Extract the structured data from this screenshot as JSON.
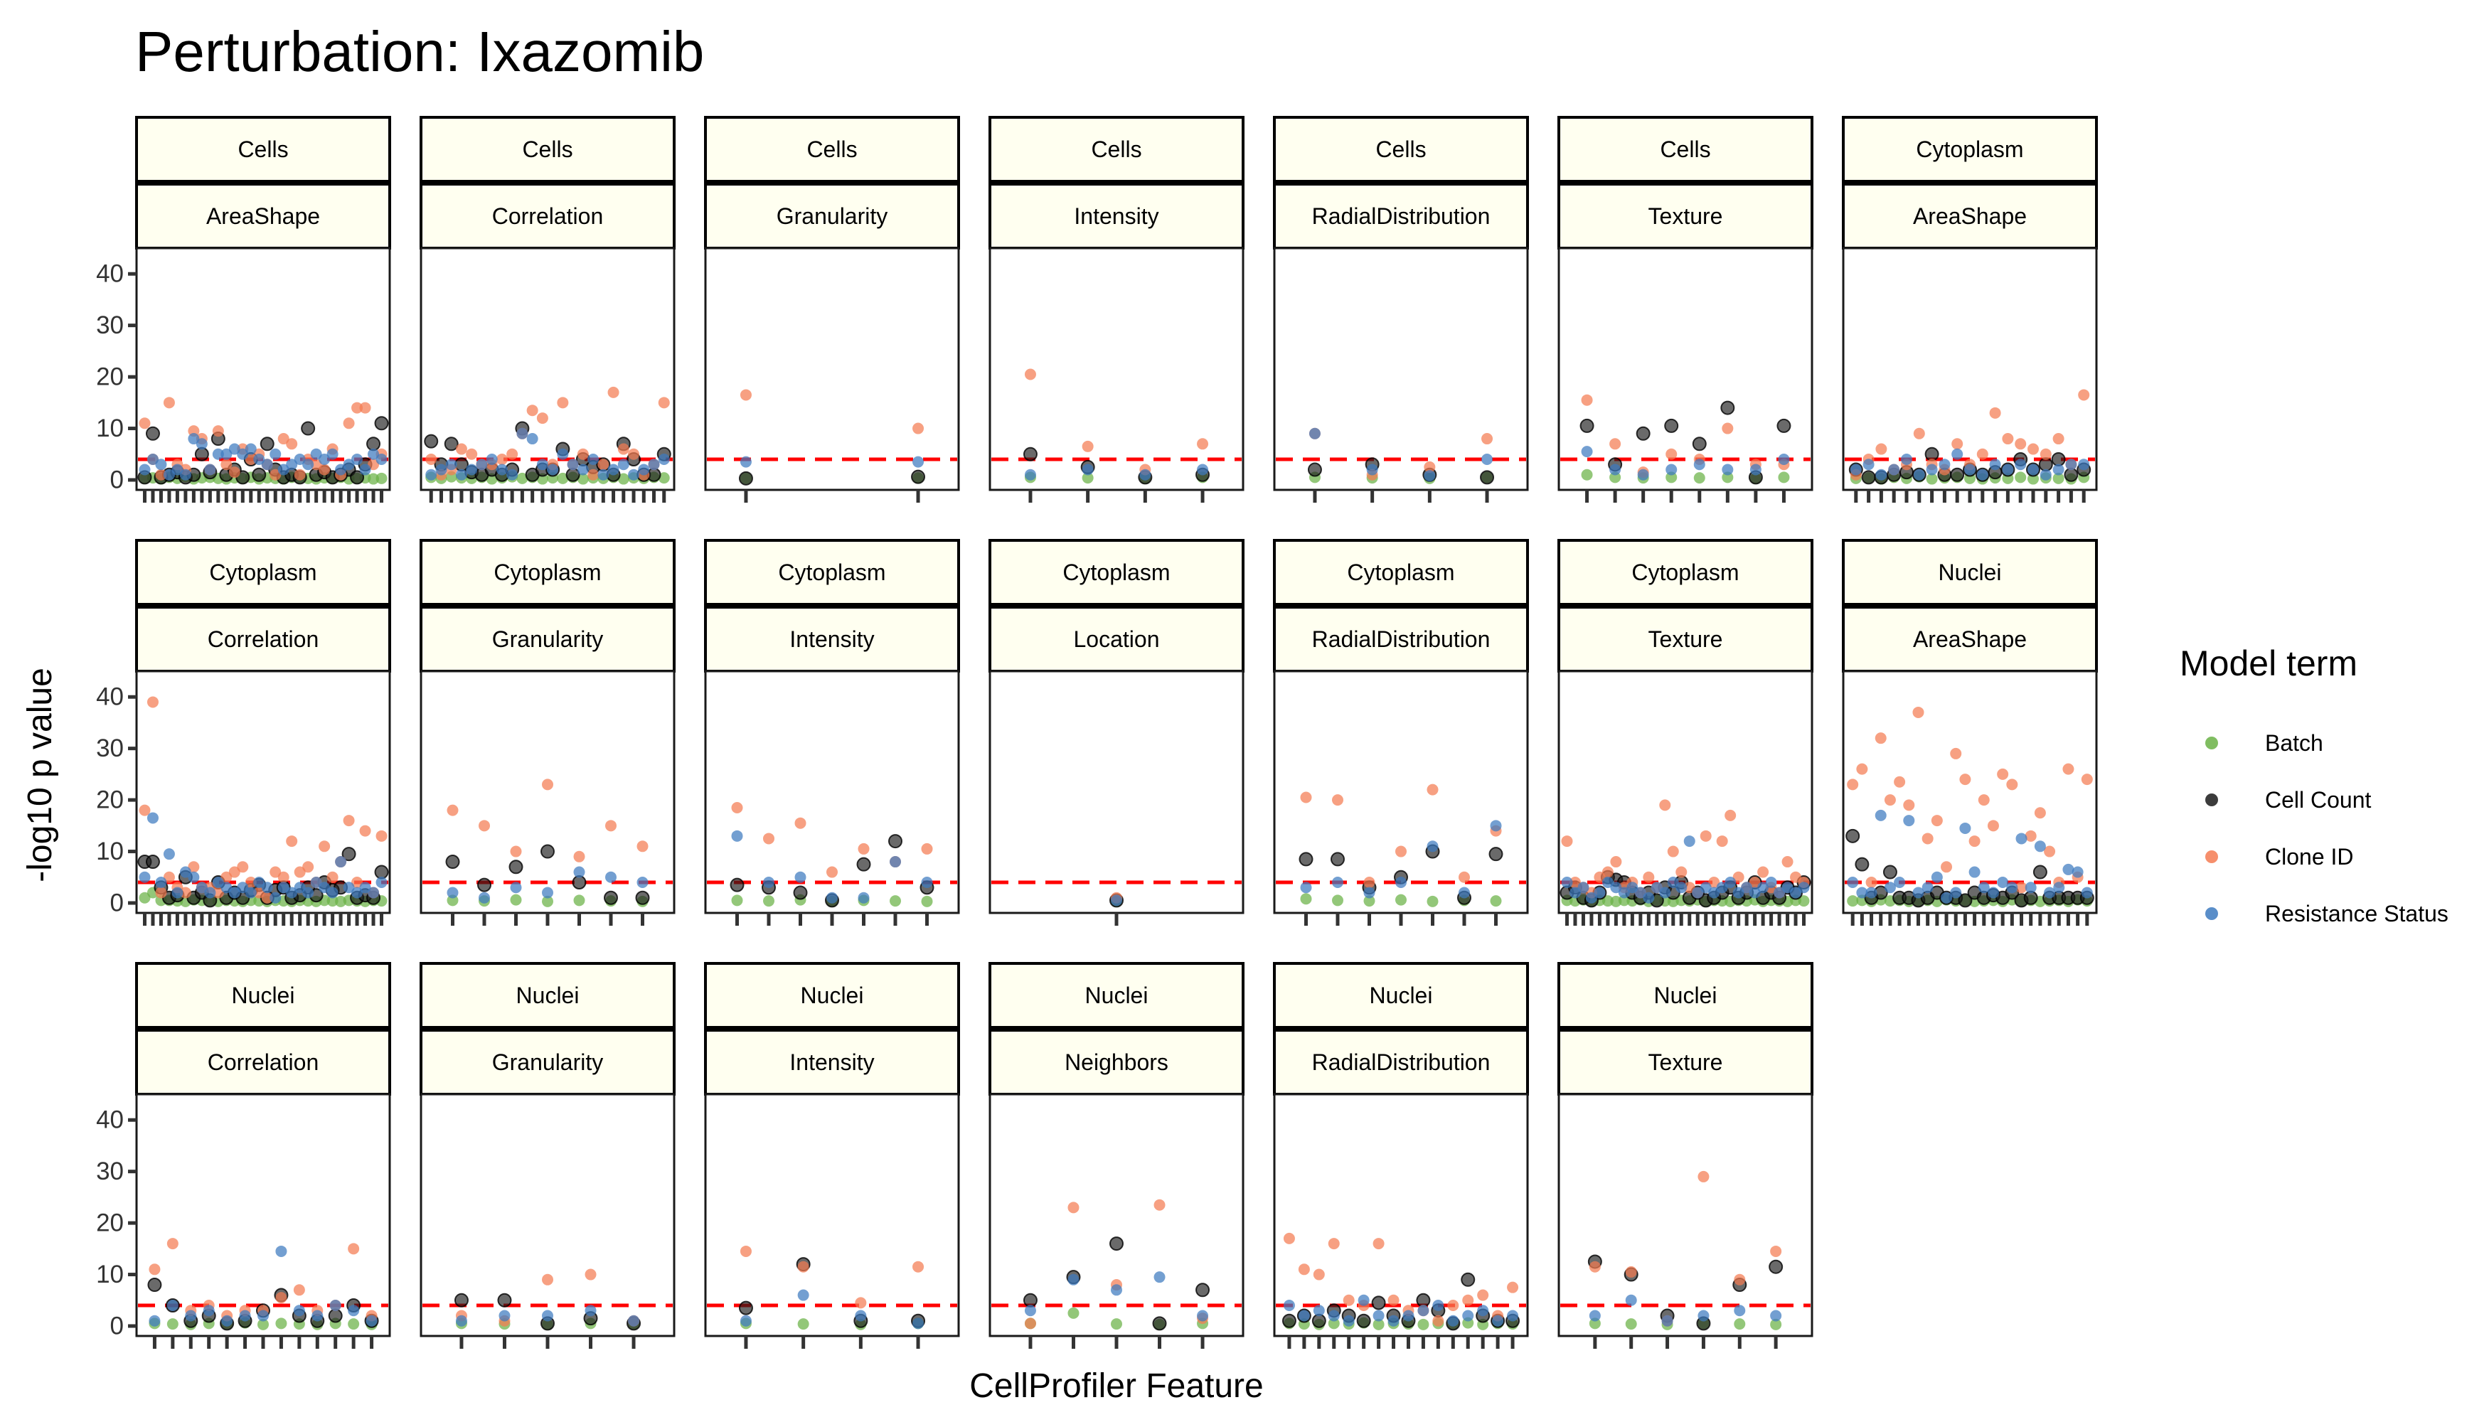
{
  "chart_data": {
    "type": "scatter",
    "title": "Perturbation: Ixazomib",
    "xlabel": "CellProfiler Feature",
    "ylabel": "-log10 p value",
    "ylim": [
      0,
      45
    ],
    "yticks": [
      0,
      10,
      20,
      30,
      40
    ],
    "threshold": 4,
    "grid": false,
    "legend": {
      "title": "Model term",
      "position": "right",
      "entries": [
        {
          "name": "Batch",
          "color": "#6ab245"
        },
        {
          "name": "Cell Count",
          "color": "#1a1a1a"
        },
        {
          "name": "Clone ID",
          "color": "#f47b52"
        },
        {
          "name": "Resistance Status",
          "color": "#3d7abf"
        }
      ]
    },
    "panels": [
      {
        "compartment": "Cells",
        "group": "AreaShape",
        "n": 30,
        "batch": [
          0.3,
          0.4,
          0.2,
          0.5,
          0.3,
          0.6,
          0.2,
          0.4,
          0.5,
          0.3,
          0.2,
          0.4,
          0.3,
          0.5,
          0.2,
          0.4,
          0.3,
          0.2,
          0.5,
          0.4,
          0.3,
          0.2,
          0.4,
          0.3,
          0.5,
          0.2,
          0.3,
          0.4,
          0.2,
          0.3
        ],
        "cell_count": [
          0.5,
          9,
          0.5,
          1,
          1.5,
          0.5,
          1,
          5,
          1.5,
          8,
          1,
          2,
          0.5,
          4,
          1,
          7,
          2,
          0.5,
          1,
          0.5,
          10,
          1,
          1.5,
          0.5,
          1,
          2,
          0.5,
          3,
          7,
          11
        ],
        "clone_id": [
          11,
          4,
          1,
          15,
          3,
          2,
          9.5,
          8,
          2,
          9.5,
          3,
          1.5,
          6,
          4,
          5,
          3,
          1,
          8,
          7,
          1,
          4,
          3,
          2,
          6,
          1,
          11,
          14,
          14,
          3,
          5
        ],
        "resistance": [
          2,
          4,
          3,
          1,
          2,
          1,
          8,
          7,
          2,
          5,
          5,
          6,
          5,
          6,
          4,
          3,
          5,
          2,
          3,
          4,
          3,
          5,
          4,
          5,
          2,
          3,
          4,
          2,
          5,
          4
        ]
      },
      {
        "compartment": "Cells",
        "group": "Correlation",
        "n": 24,
        "batch": [
          0.5,
          0.3,
          0.6,
          0.4,
          0.3,
          0.5,
          0.2,
          0.4,
          0.6,
          0.3,
          0.5,
          0.2,
          0.4,
          0.3,
          0.5,
          0.2,
          0.4,
          0.3,
          0.5,
          0.2,
          0.4,
          0.3,
          0.5,
          0.4
        ],
        "cell_count": [
          7.5,
          3,
          7,
          3,
          1.5,
          1,
          2,
          1,
          2,
          10,
          1,
          2,
          2,
          6,
          1,
          4,
          2.5,
          3,
          1,
          7,
          4,
          1,
          1,
          5
        ],
        "clone_id": [
          4,
          1,
          2,
          6,
          5,
          3,
          3,
          4,
          5,
          9,
          13.5,
          12,
          3,
          15,
          3,
          5,
          1,
          3,
          17,
          6,
          5,
          1,
          3,
          15
        ],
        "resistance": [
          1,
          2,
          3,
          1,
          2,
          3,
          4,
          2,
          1,
          9,
          8,
          3,
          2,
          5,
          3,
          2,
          4,
          1,
          2,
          3,
          1,
          2,
          3,
          4
        ]
      },
      {
        "compartment": "Cells",
        "group": "Granularity",
        "n": 2,
        "batch": [
          0.3,
          0.4
        ],
        "cell_count": [
          0.3,
          0.6
        ],
        "clone_id": [
          16.5,
          10
        ],
        "resistance": [
          3.5,
          3.5
        ]
      },
      {
        "compartment": "Cells",
        "group": "Intensity",
        "n": 4,
        "batch": [
          0.5,
          0.4,
          0.3,
          0.5
        ],
        "cell_count": [
          5,
          2.5,
          0.5,
          1
        ],
        "clone_id": [
          20.5,
          6.5,
          2,
          7
        ],
        "resistance": [
          1,
          2,
          1,
          2
        ]
      },
      {
        "compartment": "Cells",
        "group": "RadialDistribution",
        "n": 4,
        "batch": [
          0.5,
          0.4,
          0.3,
          0.5
        ],
        "cell_count": [
          2,
          3,
          1,
          0.5
        ],
        "clone_id": [
          9,
          1,
          2.5,
          8
        ],
        "resistance": [
          9,
          2,
          0.8,
          4
        ]
      },
      {
        "compartment": "Cells",
        "group": "Texture",
        "n": 8,
        "batch": [
          1,
          0.5,
          0.4,
          0.5,
          0.4,
          0.5,
          0.3,
          0.5
        ],
        "cell_count": [
          10.5,
          3,
          9,
          10.5,
          7,
          14,
          0.5,
          10.5
        ],
        "clone_id": [
          15.5,
          7,
          1.5,
          5,
          4,
          10,
          3,
          3
        ],
        "resistance": [
          5.5,
          2,
          1,
          2,
          3,
          2,
          2,
          4
        ]
      },
      {
        "compartment": "Cytoplasm",
        "group": "AreaShape",
        "n": 19,
        "batch": [
          0.3,
          0.4,
          0.2,
          0.5,
          0.3,
          0.6,
          0.2,
          0.4,
          0.5,
          0.3,
          0.2,
          0.4,
          0.3,
          0.5,
          0.2,
          0.4,
          0.3,
          0.2,
          0.5
        ],
        "cell_count": [
          2,
          0.5,
          0.5,
          1,
          1.5,
          1,
          5,
          1,
          1,
          2,
          1,
          1.5,
          2,
          4,
          2,
          3,
          4,
          1,
          2
        ],
        "clone_id": [
          1,
          4,
          6,
          2,
          3,
          9,
          3,
          2,
          7,
          3,
          5,
          13,
          8,
          7,
          6,
          5,
          8,
          3,
          16.5
        ],
        "resistance": [
          2,
          3,
          1,
          2,
          4,
          1,
          2,
          3,
          5,
          2,
          1,
          3,
          2,
          3,
          2,
          1,
          2,
          3,
          3
        ]
      },
      {
        "compartment": "Cytoplasm",
        "group": "Correlation",
        "n": 30,
        "batch": [
          1,
          2,
          0.5,
          0.5,
          0.4,
          0.3,
          0.6,
          0.5,
          0.4,
          0.3,
          0.5,
          0.4,
          0.3,
          0.5,
          0.4,
          0.3,
          0.5,
          0.4,
          0.3,
          0.5,
          0.4,
          0.3,
          0.5,
          0.4,
          0.3,
          0.5,
          0.4,
          0.3,
          0.5,
          0.4
        ],
        "cell_count": [
          8,
          8,
          3,
          1,
          1.5,
          5,
          1,
          2,
          0.5,
          4,
          1,
          2,
          1,
          2.5,
          3.5,
          1,
          2.5,
          3,
          1,
          1.5,
          3,
          1.5,
          4,
          2.5,
          3,
          9.5,
          1,
          1.5,
          1,
          6
        ],
        "clone_id": [
          18,
          39,
          2,
          5,
          3,
          2,
          7,
          3,
          3,
          2,
          5,
          6,
          7,
          4,
          2,
          1,
          6,
          5,
          12,
          6,
          7,
          4,
          11,
          5,
          8,
          16,
          4,
          14,
          2,
          13
        ],
        "resistance": [
          5,
          16.5,
          4,
          9.5,
          2,
          6,
          5,
          3,
          2,
          4,
          3,
          2,
          3,
          2,
          4,
          3,
          1,
          3,
          2,
          3,
          2,
          4,
          3,
          2,
          8,
          3,
          2,
          3,
          2,
          4
        ]
      },
      {
        "compartment": "Cytoplasm",
        "group": "Granularity",
        "n": 7,
        "batch": [
          0.5,
          0.4,
          0.6,
          0.3,
          0.5,
          0.4,
          0.3
        ],
        "cell_count": [
          8,
          3.5,
          7,
          10,
          4,
          1,
          1
        ],
        "clone_id": [
          18,
          15,
          10,
          23,
          9,
          15,
          11
        ],
        "resistance": [
          2,
          1,
          3,
          2,
          6,
          5,
          4
        ]
      },
      {
        "compartment": "Cytoplasm",
        "group": "Intensity",
        "n": 7,
        "batch": [
          0.5,
          0.4,
          0.6,
          0.3,
          0.5,
          0.4,
          0.3
        ],
        "cell_count": [
          3.5,
          3,
          2,
          0.5,
          7.5,
          12,
          3
        ],
        "clone_id": [
          18.5,
          12.5,
          15.5,
          6,
          10.5,
          8,
          10.5
        ],
        "resistance": [
          13,
          4,
          5,
          1,
          1,
          8,
          4
        ]
      },
      {
        "compartment": "Cytoplasm",
        "group": "Location",
        "n": 1,
        "batch": [
          0.3
        ],
        "cell_count": [
          0.5
        ],
        "clone_id": [
          1
        ],
        "resistance": [
          0.5
        ]
      },
      {
        "compartment": "Cytoplasm",
        "group": "RadialDistribution",
        "n": 7,
        "batch": [
          0.8,
          0.5,
          0.4,
          0.6,
          0.3,
          0.5,
          0.4
        ],
        "cell_count": [
          8.5,
          8.5,
          3,
          5,
          10,
          1,
          9.5
        ],
        "clone_id": [
          20.5,
          20,
          4,
          10,
          22,
          5,
          14
        ],
        "resistance": [
          3,
          4,
          2,
          4,
          11,
          2,
          15
        ]
      },
      {
        "compartment": "Cytoplasm",
        "group": "Texture",
        "n": 30,
        "batch": [
          0.5,
          0.4,
          0.6,
          0.3,
          0.5,
          0.4,
          0.3,
          0.5,
          0.4,
          0.6,
          0.3,
          0.5,
          0.4,
          0.3,
          0.5,
          0.4,
          0.6,
          0.3,
          0.5,
          0.4,
          0.3,
          0.5,
          0.4,
          0.6,
          0.3,
          0.5,
          0.4,
          0.3,
          0.5,
          0.4
        ],
        "cell_count": [
          2,
          3,
          1,
          0.5,
          2,
          5,
          4.5,
          4,
          2,
          1,
          2,
          0.5,
          3,
          2,
          4,
          1,
          2,
          0.5,
          1,
          2,
          3,
          1,
          2,
          4,
          1,
          2,
          1,
          3,
          2,
          4
        ],
        "clone_id": [
          12,
          4,
          3,
          2,
          5,
          6,
          8,
          3,
          4,
          2,
          5,
          3,
          19,
          10,
          6,
          3,
          2,
          13,
          4,
          12,
          17,
          5,
          3,
          4,
          6,
          3,
          2,
          8,
          5,
          4
        ],
        "resistance": [
          4,
          2,
          3,
          1,
          2,
          4,
          3,
          2,
          3,
          2,
          1,
          3,
          2,
          4,
          3,
          12,
          2,
          3,
          2,
          3,
          4,
          2,
          3,
          2,
          3,
          4,
          2,
          3,
          2,
          3
        ]
      },
      {
        "compartment": "Nuclei",
        "group": "AreaShape",
        "n": 26,
        "batch": [
          0.4,
          0.5,
          0.3,
          0.6,
          0.4,
          0.5,
          0.3,
          0.4,
          0.5,
          0.3,
          0.6,
          0.4,
          0.5,
          0.3,
          0.4,
          0.5,
          0.3,
          0.6,
          0.4,
          0.5,
          0.3,
          0.4,
          0.5,
          0.3,
          0.6,
          0.4
        ],
        "cell_count": [
          13,
          7.5,
          1,
          2,
          6,
          1,
          1,
          0.5,
          1,
          2,
          1,
          1,
          0.5,
          2,
          1,
          1.5,
          1,
          2,
          0.5,
          1,
          6,
          1,
          1,
          1,
          1,
          1
        ],
        "clone_id": [
          23,
          26,
          4,
          32,
          20,
          23.5,
          19,
          37,
          12.5,
          16,
          7,
          29,
          24,
          12,
          20,
          15,
          25,
          23,
          3,
          13,
          17.5,
          10,
          4,
          26,
          5,
          24
        ],
        "resistance": [
          4,
          2,
          2,
          17,
          3,
          4,
          16,
          2,
          3,
          5,
          1,
          2,
          14.5,
          6,
          3,
          2,
          4,
          3,
          12.5,
          3,
          11,
          2,
          3,
          6.5,
          6,
          2
        ]
      },
      {
        "compartment": "Nuclei",
        "group": "Correlation",
        "n": 13,
        "batch": [
          0.5,
          0.4,
          0.3,
          0.5,
          0.4,
          0.6,
          0.3,
          0.5,
          0.4,
          0.3,
          0.5,
          0.4,
          0.3
        ],
        "cell_count": [
          8,
          4,
          1,
          2,
          0.5,
          1,
          3,
          6,
          2,
          1,
          2,
          4,
          1
        ],
        "clone_id": [
          11,
          16,
          3,
          4,
          2,
          3,
          3,
          5.5,
          7,
          3,
          4,
          15,
          2
        ],
        "resistance": [
          1,
          4,
          2,
          3,
          1,
          2,
          2,
          14.5,
          3,
          2,
          4,
          3,
          1
        ]
      },
      {
        "compartment": "Nuclei",
        "group": "Granularity",
        "n": 5,
        "batch": [
          0.5,
          0.4,
          0.3,
          0.5,
          0.4
        ],
        "cell_count": [
          5,
          5,
          0.5,
          1.5,
          0.5
        ],
        "clone_id": [
          2,
          1,
          9,
          10,
          1
        ],
        "resistance": [
          1,
          2,
          2,
          3,
          1
        ]
      },
      {
        "compartment": "Nuclei",
        "group": "Intensity",
        "n": 4,
        "batch": [
          0.5,
          0.4,
          0.3,
          0.5
        ],
        "cell_count": [
          3.5,
          12,
          1,
          1
        ],
        "clone_id": [
          14.5,
          11.5,
          4.5,
          11.5
        ],
        "resistance": [
          1,
          6,
          2,
          0.5
        ]
      },
      {
        "compartment": "Nuclei",
        "group": "Neighbors",
        "n": 5,
        "batch": [
          0.5,
          2.5,
          0.4,
          0.3,
          0.5
        ],
        "cell_count": [
          5,
          9.5,
          16,
          0.5,
          7
        ],
        "clone_id": [
          0.5,
          23,
          8,
          23.5,
          1.5
        ],
        "resistance": [
          3,
          9,
          7,
          9.5,
          2
        ]
      },
      {
        "compartment": "Nuclei",
        "group": "RadialDistribution",
        "n": 16,
        "batch": [
          0.5,
          0.4,
          0.3,
          0.5,
          0.4,
          0.6,
          0.3,
          0.5,
          0.4,
          0.3,
          0.5,
          0.4,
          0.6,
          0.3,
          0.5,
          0.4
        ],
        "cell_count": [
          1,
          2,
          1,
          3,
          2,
          1,
          4.5,
          2,
          1,
          5,
          3,
          0.5,
          9,
          2,
          1,
          1
        ],
        "clone_id": [
          17,
          11,
          10,
          16,
          5,
          4,
          16,
          5,
          3,
          3,
          1,
          4,
          5,
          6,
          2,
          7.5
        ],
        "resistance": [
          4,
          2,
          3,
          2,
          1,
          5,
          2,
          1,
          2,
          3,
          4,
          1,
          2,
          3,
          1,
          2
        ]
      },
      {
        "compartment": "Nuclei",
        "group": "Texture",
        "n": 6,
        "batch": [
          0.5,
          0.4,
          0.3,
          0.5,
          0.4,
          0.3
        ],
        "cell_count": [
          12.5,
          10,
          2,
          0.5,
          8,
          11.5
        ],
        "clone_id": [
          11.5,
          10.5,
          1,
          29,
          9,
          14.5
        ],
        "resistance": [
          2,
          5,
          1,
          2,
          3,
          2
        ]
      }
    ]
  }
}
